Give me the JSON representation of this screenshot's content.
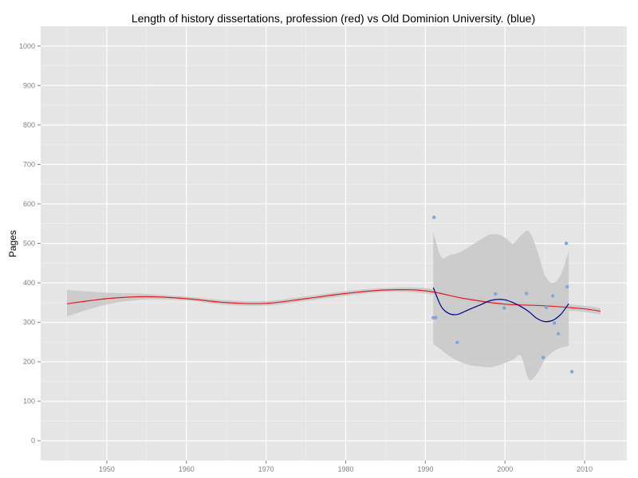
{
  "chart_data": {
    "type": "scatter",
    "title": "Length of history dissertations, profession (red) vs Old Dominion University. (blue)",
    "xlabel": "",
    "ylabel": "Pages",
    "xlim": [
      1941.7,
      2015.3
    ],
    "ylim": [
      -50,
      1050
    ],
    "x_ticks": [
      "1950",
      "1960",
      "1970",
      "1980",
      "1990",
      "2000",
      "2010"
    ],
    "y_ticks": [
      "0",
      "100",
      "200",
      "300",
      "400",
      "500",
      "600",
      "700",
      "800",
      "900",
      "1000"
    ],
    "grid": true,
    "background": "#e5e5e5",
    "series": [
      {
        "kind": "smooth",
        "color": "#e41a1c",
        "band_color": "#c8c8c8",
        "x": [
          1945,
          1950,
          1955,
          1960,
          1965,
          1970,
          1975,
          1980,
          1985,
          1990,
          1995,
          2000,
          2005,
          2010,
          2012
        ],
        "y": [
          347,
          360,
          365,
          360,
          350,
          348,
          360,
          373,
          382,
          380,
          360,
          346,
          342,
          334,
          328
        ],
        "ci_lower": [
          315,
          345,
          358,
          355,
          344,
          342,
          354,
          367,
          377,
          373,
          353,
          338,
          334,
          326,
          320
        ],
        "ci_upper": [
          382,
          375,
          372,
          365,
          356,
          354,
          366,
          379,
          387,
          387,
          367,
          354,
          350,
          342,
          336
        ]
      },
      {
        "kind": "smooth",
        "color": "#00008b",
        "band_color": "#c8c8c8",
        "x": [
          1991,
          1992,
          1993,
          1994,
          1995,
          1996,
          1997,
          1998,
          1999,
          2000,
          2001,
          2002,
          2003,
          2004,
          2005,
          2006,
          2007,
          2008
        ],
        "y": [
          388,
          340,
          322,
          320,
          328,
          337,
          345,
          354,
          358,
          357,
          350,
          340,
          327,
          310,
          302,
          305,
          320,
          347
        ],
        "ci_lower": [
          245,
          230,
          215,
          203,
          195,
          190,
          188,
          186,
          190,
          197,
          205,
          215,
          155,
          170,
          205,
          225,
          235,
          240
        ],
        "ci_upper": [
          528,
          465,
          470,
          475,
          485,
          498,
          510,
          522,
          523,
          515,
          500,
          520,
          530,
          485,
          420,
          400,
          420,
          480
        ]
      },
      {
        "kind": "points",
        "color": "#7ea6e0",
        "x": [
          1991.0,
          1991.3,
          1991.1,
          1994.0,
          1998.8,
          1999.9,
          2002.7,
          2004.8,
          2005.2,
          2006.0,
          2006.2,
          2006.7,
          2007.7,
          2007.8,
          2008.4
        ],
        "y": [
          312,
          312,
          566,
          249,
          372,
          336,
          373,
          211,
          338,
          367,
          298,
          271,
          500,
          390,
          175
        ]
      }
    ]
  }
}
